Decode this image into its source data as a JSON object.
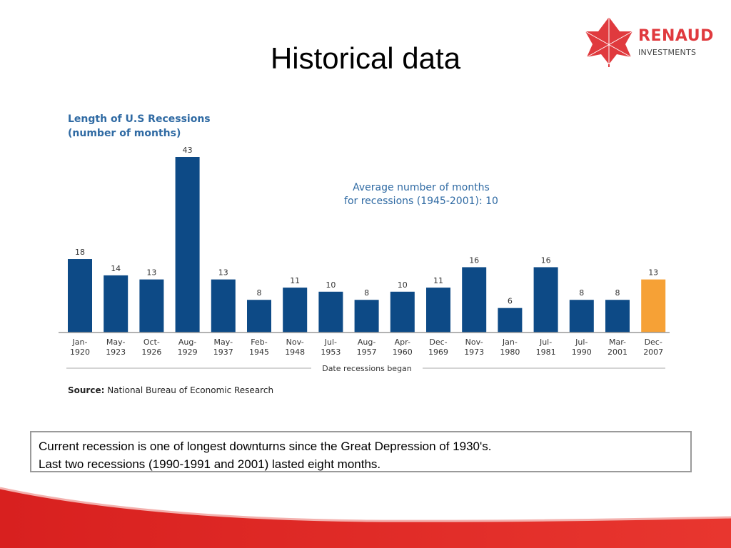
{
  "slide": {
    "title": "Historical data"
  },
  "logo": {
    "name": "RENAUD",
    "subtitle": "INVESTMENTS",
    "color": "#e03a3e"
  },
  "chart_data": {
    "type": "bar",
    "title_lines": [
      "Length of U.S Recessions",
      "(number of months)"
    ],
    "categories": [
      [
        "Jan-",
        "1920"
      ],
      [
        "May-",
        "1923"
      ],
      [
        "Oct-",
        "1926"
      ],
      [
        "Aug-",
        "1929"
      ],
      [
        "May-",
        "1937"
      ],
      [
        "Feb-",
        "1945"
      ],
      [
        "Nov-",
        "1948"
      ],
      [
        "Jul-",
        "1953"
      ],
      [
        "Aug-",
        "1957"
      ],
      [
        "Apr-",
        "1960"
      ],
      [
        "Dec-",
        "1969"
      ],
      [
        "Nov-",
        "1973"
      ],
      [
        "Jan-",
        "1980"
      ],
      [
        "Jul-",
        "1981"
      ],
      [
        "Jul-",
        "1990"
      ],
      [
        "Mar-",
        "2001"
      ],
      [
        "Dec-",
        "2007"
      ]
    ],
    "values": [
      18,
      14,
      13,
      43,
      13,
      8,
      11,
      10,
      8,
      10,
      11,
      16,
      6,
      16,
      8,
      8,
      13
    ],
    "highlight_index": 16,
    "colors": {
      "bar": "#0d4a86",
      "highlight": "#f6a136",
      "label": "#333333"
    },
    "xlabel": "Date recessions began",
    "annotation_lines": [
      "Average number of months",
      "for recessions (1945-2001): 10"
    ],
    "ylim": [
      0,
      43
    ],
    "grid": false,
    "legend": false
  },
  "source": {
    "label": "Source:",
    "text": "National Bureau of Economic Research"
  },
  "note": {
    "lines": [
      "Current recession is one of longest downturns since  the Great Depression of 1930's.",
      "Last two recessions (1990-1991 and 2001) lasted eight months."
    ]
  }
}
